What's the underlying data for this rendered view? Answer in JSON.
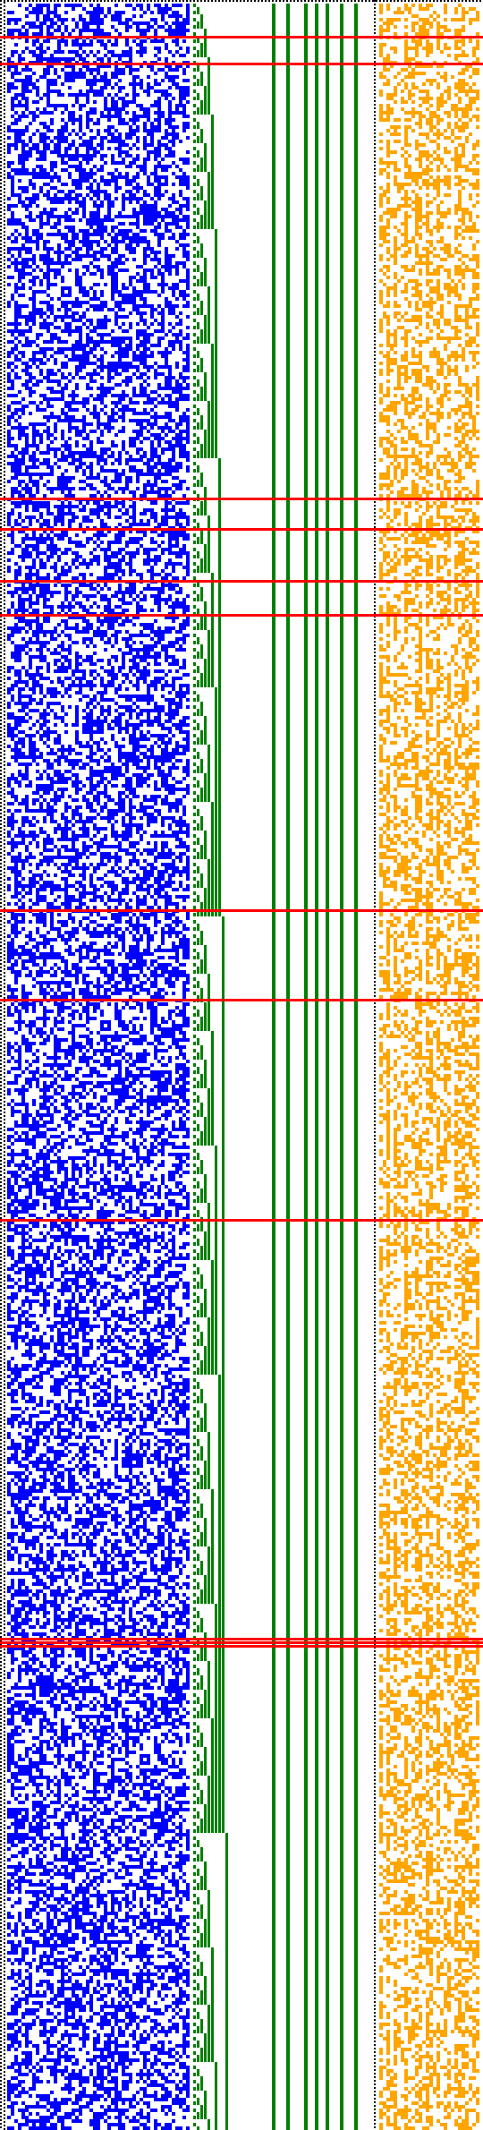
{
  "colors": {
    "background": "#ffffff",
    "border_dots": "#000000",
    "random_cells": "#0000ff",
    "counter_bits": "#008000",
    "orange_cells": "#ffa500",
    "highlight_rows": "#ff0000"
  },
  "panels": [
    {
      "name": "random-cell-panel",
      "color": "#0000ff",
      "pattern": "noise",
      "density": 0.5
    },
    {
      "name": "binary-counter-panel",
      "color": "#008000",
      "pattern": "binary-counter"
    },
    {
      "name": "orange-cell-panel",
      "color": "#ffa500",
      "pattern": "columnar-noise",
      "density": 0.45
    }
  ],
  "highlight_row_count": 13
}
